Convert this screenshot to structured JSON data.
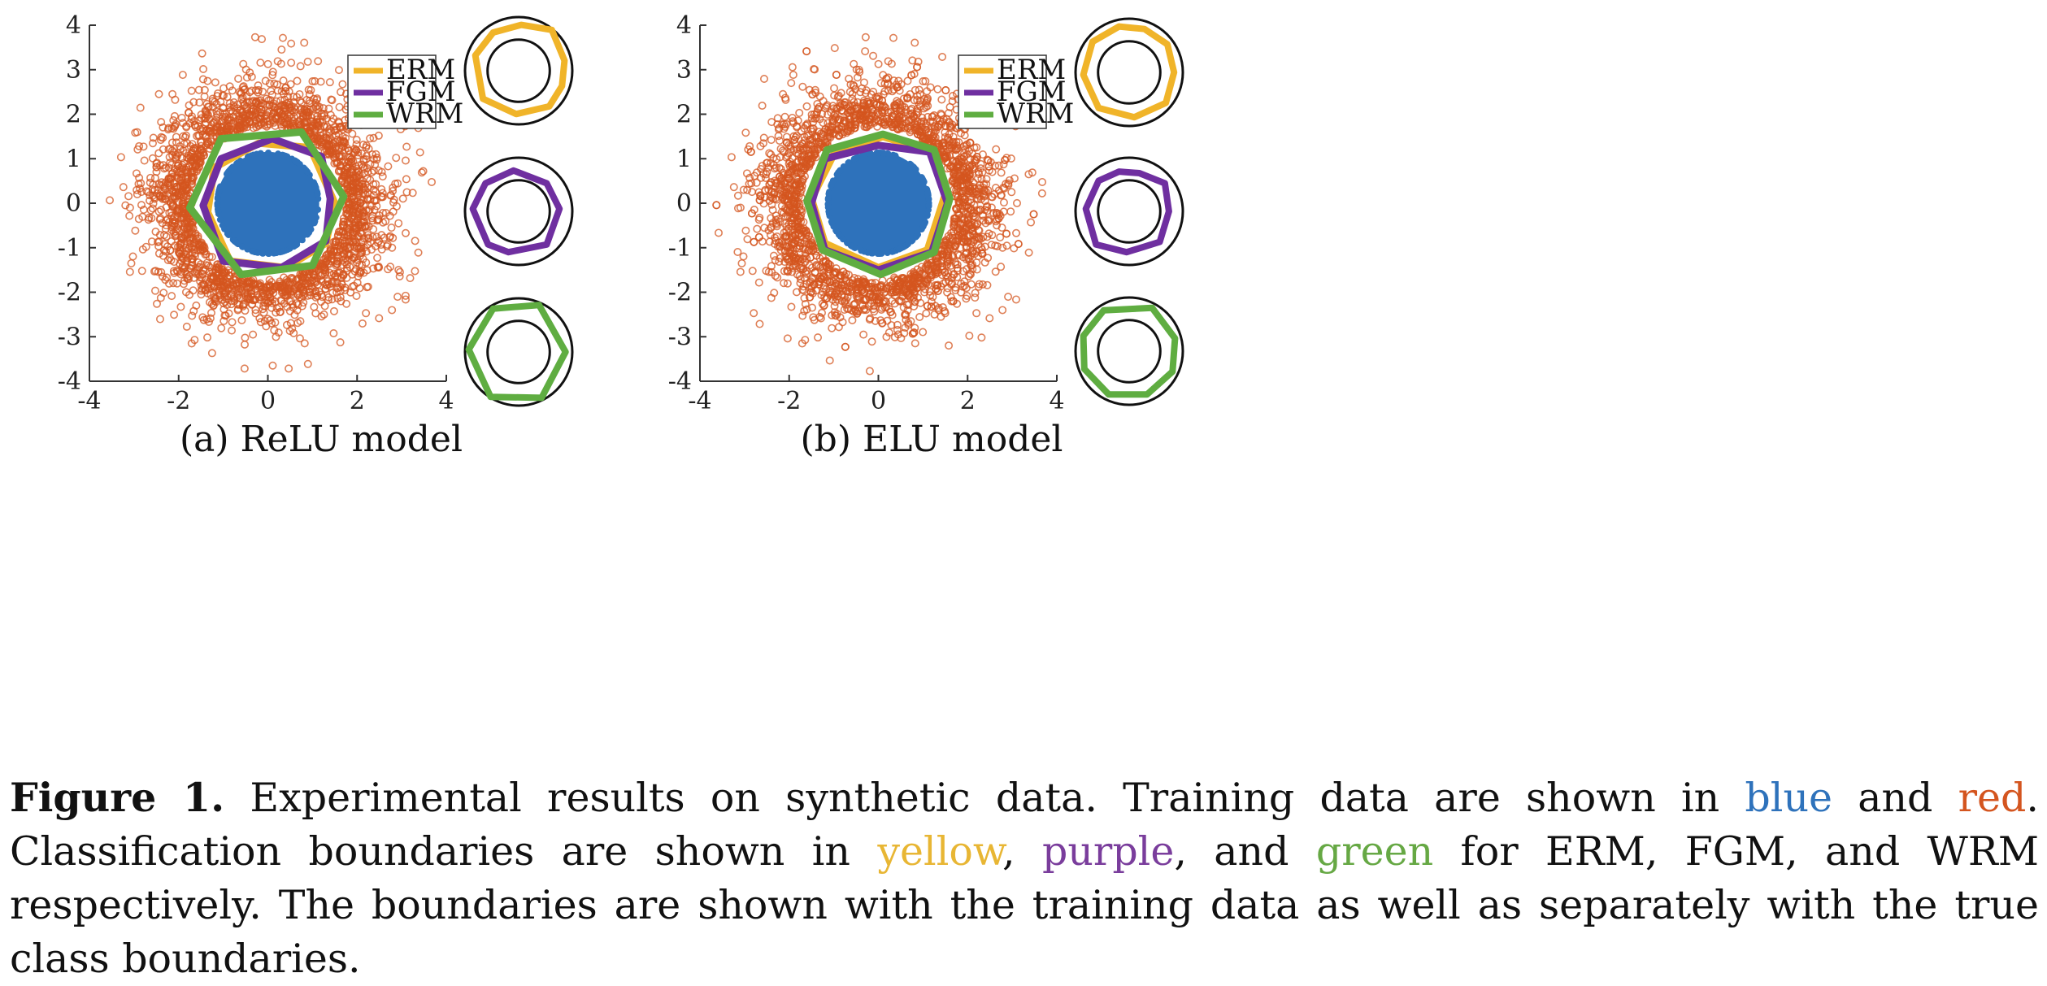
{
  "colors": {
    "blue": "#2e72bb",
    "red": "#d4551f",
    "ERM": "#f0b429",
    "FGM": "#6f2fa0",
    "WRM": "#5fad41",
    "circle": "#111111"
  },
  "chart_data": [
    {
      "type": "scatter",
      "subcaption": "(a) ReLU model",
      "xlim": [
        -4,
        4
      ],
      "ylim": [
        -4,
        4
      ],
      "xticks": [
        "-4",
        "-2",
        "0",
        "2",
        "4"
      ],
      "yticks": [
        "4",
        "3",
        "2",
        "1",
        "0",
        "-1",
        "-2",
        "-3",
        "-4"
      ],
      "legend": {
        "placement": "top-right",
        "entries": [
          "ERM",
          "FGM",
          "WRM"
        ]
      },
      "series": [
        {
          "name": "blue",
          "description_shape": "filled disk",
          "radius": 1.15
        },
        {
          "name": "red",
          "description_shape": "ring of circles",
          "inner_radius": 1.7,
          "outer_radius": 3.8
        }
      ],
      "boundaries": {
        "ERM": [
          [
            1.5,
            0
          ],
          [
            0.95,
            1.25
          ],
          [
            -0.2,
            1.35
          ],
          [
            -1.2,
            0.8
          ],
          [
            -1.35,
            -0.2
          ],
          [
            -0.85,
            -1.3
          ],
          [
            0.4,
            -1.45
          ],
          [
            1.3,
            -0.9
          ]
        ],
        "FGM": [
          [
            1.4,
            0.1
          ],
          [
            1.2,
            1.05
          ],
          [
            0.1,
            1.45
          ],
          [
            -1.05,
            1.0
          ],
          [
            -1.45,
            -0.05
          ],
          [
            -1.0,
            -1.3
          ],
          [
            0.3,
            -1.45
          ],
          [
            1.3,
            -0.85
          ]
        ],
        "WRM": [
          [
            1.7,
            0.15
          ],
          [
            0.75,
            1.6
          ],
          [
            -1.05,
            1.45
          ],
          [
            -1.75,
            -0.1
          ],
          [
            -0.6,
            -1.6
          ],
          [
            1.0,
            -1.4
          ]
        ]
      },
      "insets": {
        "ERM": [
          [
            0.05,
            0.9
          ],
          [
            0.65,
            0.8
          ],
          [
            0.9,
            0.2
          ],
          [
            0.85,
            -0.3
          ],
          [
            0.6,
            -0.7
          ],
          [
            -0.05,
            -0.85
          ],
          [
            -0.7,
            -0.55
          ],
          [
            -0.85,
            0.3
          ],
          [
            -0.5,
            0.75
          ]
        ],
        "FGM": [
          [
            -0.1,
            0.8
          ],
          [
            0.55,
            0.55
          ],
          [
            0.8,
            0.05
          ],
          [
            0.55,
            -0.65
          ],
          [
            -0.2,
            -0.8
          ],
          [
            -0.6,
            -0.65
          ],
          [
            -0.9,
            0.05
          ],
          [
            -0.65,
            0.55
          ]
        ],
        "WRM": [
          [
            0.4,
            0.92
          ],
          [
            0.92,
            0.0
          ],
          [
            0.45,
            -0.9
          ],
          [
            -0.55,
            -0.88
          ],
          [
            -0.98,
            0.05
          ],
          [
            -0.5,
            0.85
          ]
        ]
      }
    },
    {
      "type": "scatter",
      "subcaption": "(b) ELU model",
      "xlim": [
        -4,
        4
      ],
      "ylim": [
        -4,
        4
      ],
      "xticks": [
        "-4",
        "-2",
        "0",
        "2",
        "4"
      ],
      "yticks": [
        "4",
        "3",
        "2",
        "1",
        "0",
        "-1",
        "-2",
        "-3",
        "-4"
      ],
      "legend": {
        "placement": "top-right",
        "entries": [
          "ERM",
          "FGM",
          "WRM"
        ]
      },
      "series": [
        {
          "name": "blue",
          "description_shape": "filled disk",
          "radius": 1.15
        },
        {
          "name": "red",
          "description_shape": "ring of circles",
          "inner_radius": 1.7,
          "outer_radius": 3.8
        }
      ],
      "boundaries": {
        "ERM": [
          [
            1.5,
            0.2
          ],
          [
            1.2,
            1.15
          ],
          [
            0.1,
            1.5
          ],
          [
            -1.0,
            1.1
          ],
          [
            -1.5,
            0.1
          ],
          [
            -1.2,
            -0.9
          ],
          [
            0.0,
            -1.45
          ],
          [
            1.1,
            -1.05
          ]
        ],
        "FGM": [
          [
            1.55,
            0.0
          ],
          [
            1.15,
            1.15
          ],
          [
            0.0,
            1.3
          ],
          [
            -1.2,
            1.0
          ],
          [
            -1.5,
            0.0
          ],
          [
            -1.2,
            -1.05
          ],
          [
            0.0,
            -1.5
          ],
          [
            1.2,
            -1.1
          ]
        ],
        "WRM": [
          [
            1.6,
            0.1
          ],
          [
            1.25,
            1.2
          ],
          [
            0.1,
            1.55
          ],
          [
            -1.15,
            1.2
          ],
          [
            -1.6,
            0.05
          ],
          [
            -1.25,
            -1.05
          ],
          [
            0.05,
            -1.6
          ],
          [
            1.25,
            -1.1
          ]
        ]
      },
      "insets": {
        "ERM": [
          [
            0.3,
            0.85
          ],
          [
            0.75,
            0.55
          ],
          [
            0.88,
            0.0
          ],
          [
            0.72,
            -0.6
          ],
          [
            0.1,
            -0.88
          ],
          [
            -0.6,
            -0.7
          ],
          [
            -0.9,
            -0.05
          ],
          [
            -0.72,
            0.6
          ],
          [
            -0.2,
            0.9
          ]
        ],
        "FGM": [
          [
            0.2,
            0.75
          ],
          [
            0.7,
            0.55
          ],
          [
            0.78,
            0.0
          ],
          [
            0.6,
            -0.6
          ],
          [
            -0.05,
            -0.8
          ],
          [
            -0.65,
            -0.65
          ],
          [
            -0.85,
            0.05
          ],
          [
            -0.6,
            0.6
          ],
          [
            -0.2,
            0.78
          ]
        ],
        "WRM": [
          [
            0.45,
            0.85
          ],
          [
            0.9,
            0.25
          ],
          [
            0.85,
            -0.4
          ],
          [
            0.35,
            -0.85
          ],
          [
            -0.4,
            -0.85
          ],
          [
            -0.88,
            -0.35
          ],
          [
            -0.9,
            0.3
          ],
          [
            -0.5,
            0.8
          ]
        ]
      }
    }
  ],
  "caption": {
    "label": "Figure 1.",
    "part1": " Experimental results on synthetic data. Training data are shown in ",
    "blue_word": "blue",
    "part2": " and ",
    "red_word": "red",
    "part3": ". Classification boundaries are shown in ",
    "yellow_word": "yellow",
    "part4": ", ",
    "purple_word": "purple",
    "part5": ", and ",
    "green_word": "green",
    "part6": " for ERM, FGM, and WRM respectively. The boundaries are shown with the training data as well as separately with the true class boundaries."
  }
}
